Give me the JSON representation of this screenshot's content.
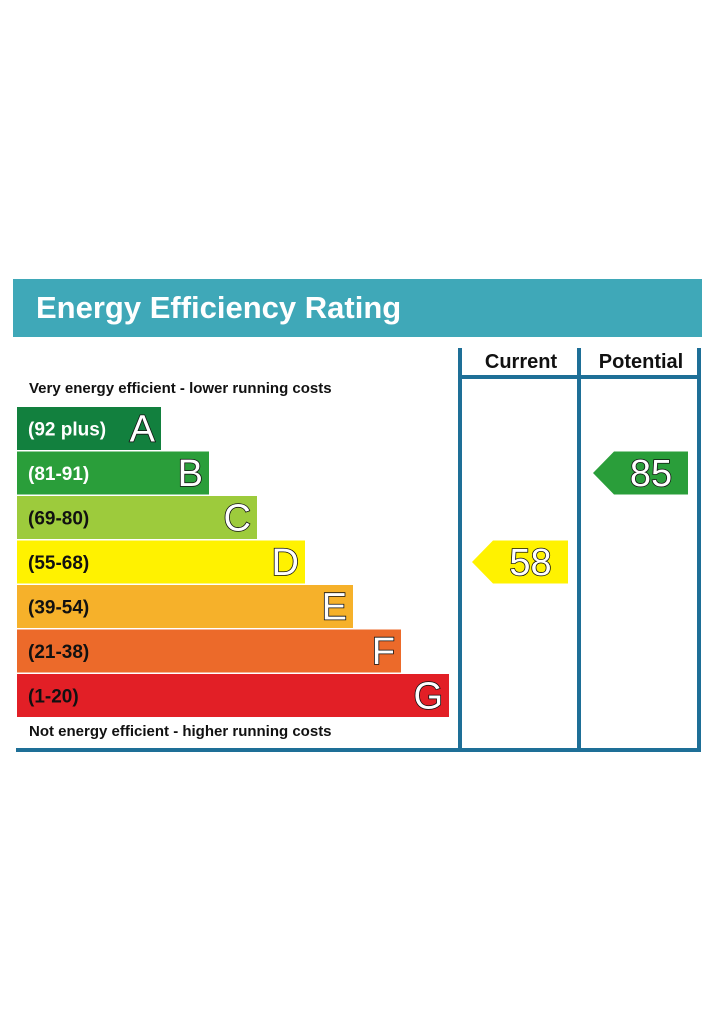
{
  "header": {
    "title": "Energy Efficiency Rating",
    "color": "#3fa8b8"
  },
  "columns": {
    "current_label": "Current",
    "potential_label": "Potential"
  },
  "notes": {
    "top": "Very energy efficient - lower running costs",
    "bottom": "Not energy efficient - higher running costs"
  },
  "frame_color": "#1e6f97",
  "chart_data": {
    "type": "bar",
    "title": "Energy Efficiency Rating",
    "bands": [
      {
        "letter": "A",
        "range": "(92 plus)",
        "color": "#12803e",
        "text_color": "#ffffff"
      },
      {
        "letter": "B",
        "range": "(81-91)",
        "color": "#2a9e3a",
        "text_color": "#ffffff"
      },
      {
        "letter": "C",
        "range": "(69-80)",
        "color": "#9dcb3c",
        "text_color": "#111111"
      },
      {
        "letter": "D",
        "range": "(55-68)",
        "color": "#fff200",
        "text_color": "#111111"
      },
      {
        "letter": "E",
        "range": "(39-54)",
        "color": "#f6b12a",
        "text_color": "#111111"
      },
      {
        "letter": "F",
        "range": "(21-38)",
        "color": "#ec6a2a",
        "text_color": "#111111"
      },
      {
        "letter": "G",
        "range": "(1-20)",
        "color": "#e21f26",
        "text_color": "#111111"
      }
    ],
    "current": {
      "value": 58,
      "band": "D",
      "color": "#fff200"
    },
    "potential": {
      "value": 85,
      "band": "B",
      "color": "#2a9e3a"
    }
  }
}
